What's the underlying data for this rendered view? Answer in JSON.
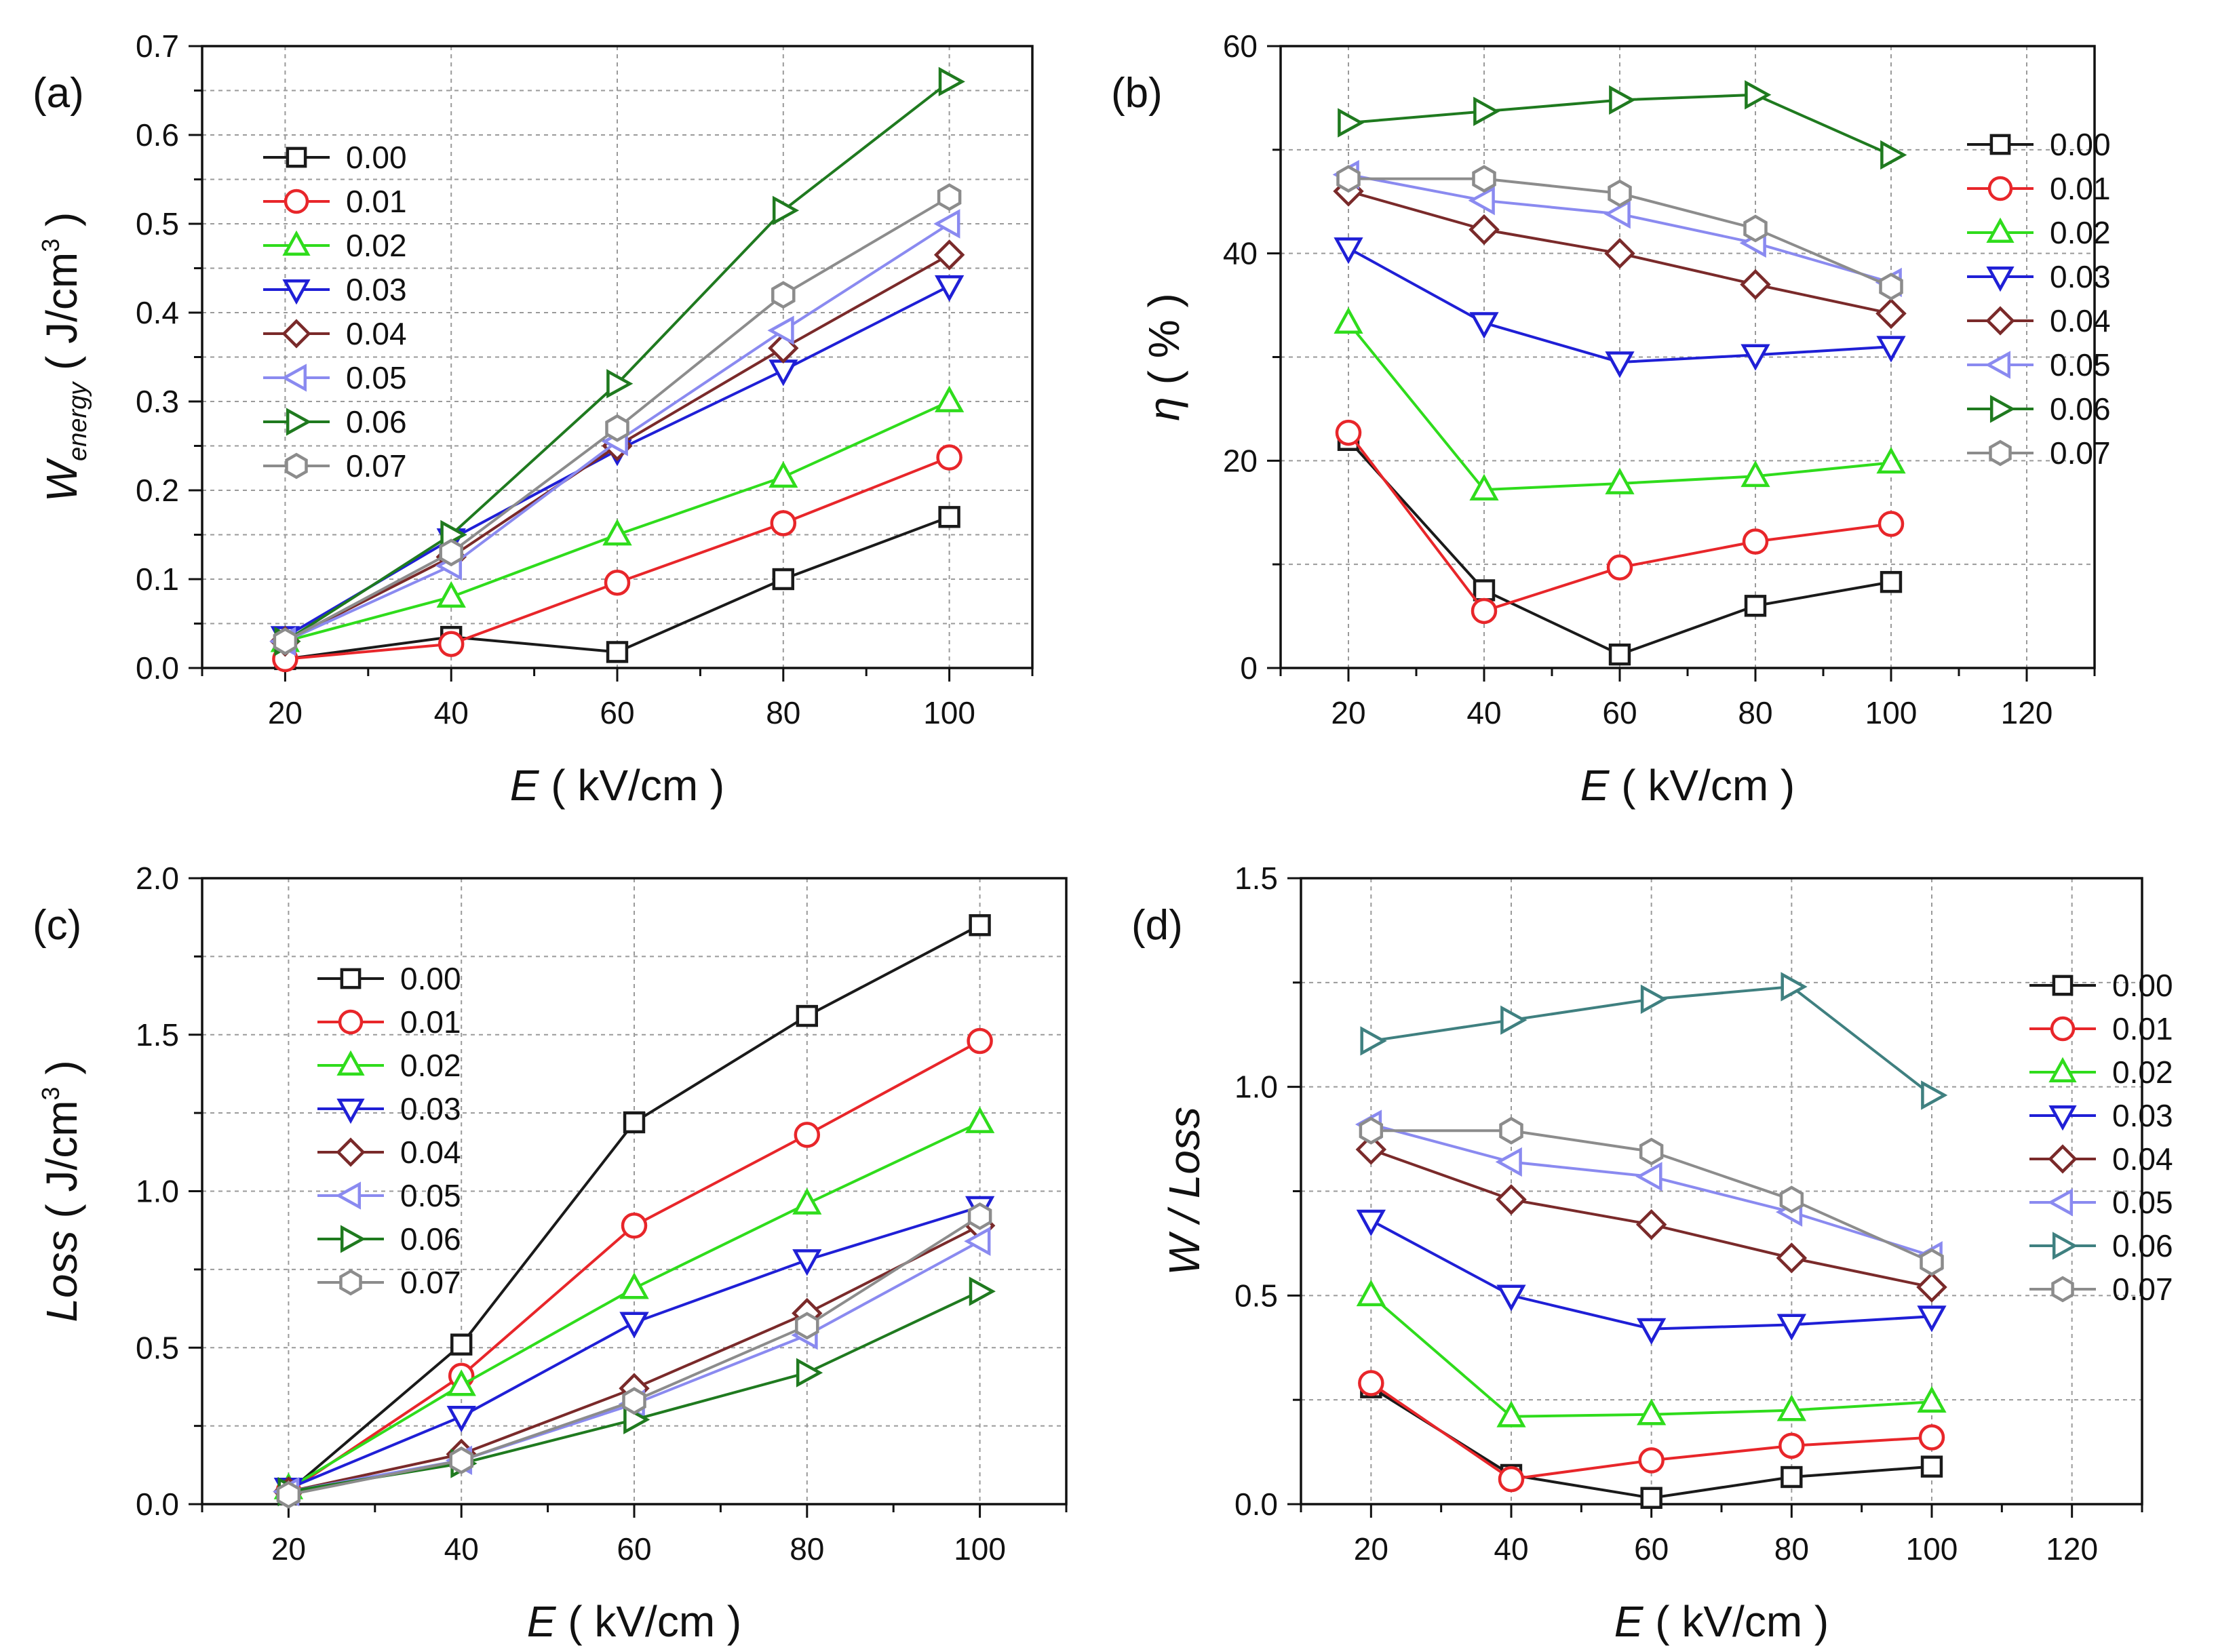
{
  "figure": {
    "x_unit": "( kV/cm )",
    "x_var": "E",
    "series_names": [
      "0.00",
      "0.01",
      "0.02",
      "0.03",
      "0.04",
      "0.05",
      "0.06",
      "0.07"
    ]
  },
  "chart_data": [
    {
      "panel": "(a)",
      "type": "line",
      "xlabel": "E ( kV/cm )",
      "ylabel_main": "W",
      "ylabel_sub": "energy",
      "ylabel_unit": "( J/cm",
      "ylabel_sup": "3",
      "ylabel_end": ")",
      "x": [
        20,
        40,
        60,
        80,
        100
      ],
      "xlim": [
        10,
        110
      ],
      "ylim": [
        0.0,
        0.7
      ],
      "xticks": [
        "20",
        "40",
        "60",
        "80",
        "100"
      ],
      "yticks": [
        "0.0",
        "0.1",
        "0.2",
        "0.3",
        "0.4",
        "0.5",
        "0.6",
        "0.7"
      ],
      "grid": true,
      "legend_position": "top-left",
      "series": [
        {
          "name": "0.00",
          "marker": "square",
          "color": "#1a1a1a",
          "values": [
            0.01,
            0.035,
            0.018,
            0.1,
            0.17
          ]
        },
        {
          "name": "0.01",
          "marker": "circle",
          "color": "#e8262a",
          "values": [
            0.01,
            0.027,
            0.096,
            0.163,
            0.237
          ]
        },
        {
          "name": "0.02",
          "marker": "triangle-up",
          "color": "#2fdc1c",
          "values": [
            0.03,
            0.08,
            0.15,
            0.215,
            0.3
          ]
        },
        {
          "name": "0.03",
          "marker": "triangle-down",
          "color": "#1f1fd6",
          "values": [
            0.035,
            0.145,
            0.245,
            0.335,
            0.43
          ]
        },
        {
          "name": "0.04",
          "marker": "diamond",
          "color": "#7a2a2a",
          "values": [
            0.03,
            0.125,
            0.25,
            0.36,
            0.465
          ]
        },
        {
          "name": "0.05",
          "marker": "triangle-left",
          "color": "#8a8af0",
          "values": [
            0.03,
            0.115,
            0.255,
            0.38,
            0.5
          ]
        },
        {
          "name": "0.06",
          "marker": "triangle-right",
          "color": "#1f7a1f",
          "values": [
            0.03,
            0.15,
            0.32,
            0.515,
            0.66
          ]
        },
        {
          "name": "0.07",
          "marker": "hexagon",
          "color": "#8c8c8c",
          "values": [
            0.03,
            0.13,
            0.27,
            0.42,
            0.53
          ]
        }
      ]
    },
    {
      "panel": "(b)",
      "type": "line",
      "xlabel": "E ( kV/cm )",
      "ylabel_main": "η",
      "ylabel_unit": "( % )",
      "x": [
        20,
        40,
        60,
        80,
        100
      ],
      "xlim": [
        10,
        130
      ],
      "ylim": [
        0,
        60
      ],
      "xticks": [
        "20",
        "40",
        "60",
        "80",
        "100",
        "120"
      ],
      "yticks": [
        "0",
        "20",
        "40",
        "60"
      ],
      "grid": true,
      "legend_position": "right",
      "series": [
        {
          "name": "0.00",
          "marker": "square",
          "color": "#1a1a1a",
          "values": [
            22.0,
            7.5,
            1.3,
            6.0,
            8.3
          ]
        },
        {
          "name": "0.01",
          "marker": "circle",
          "color": "#e8262a",
          "values": [
            22.7,
            5.5,
            9.7,
            12.2,
            13.9
          ]
        },
        {
          "name": "0.02",
          "marker": "triangle-up",
          "color": "#2fdc1c",
          "values": [
            33.3,
            17.2,
            17.8,
            18.5,
            19.8
          ]
        },
        {
          "name": "0.03",
          "marker": "triangle-down",
          "color": "#1f1fd6",
          "values": [
            40.5,
            33.3,
            29.5,
            30.2,
            31.0
          ]
        },
        {
          "name": "0.04",
          "marker": "diamond",
          "color": "#7a2a2a",
          "values": [
            46.0,
            42.3,
            40.0,
            37.0,
            34.2
          ]
        },
        {
          "name": "0.05",
          "marker": "triangle-left",
          "color": "#8a8af0",
          "values": [
            47.6,
            45.1,
            43.8,
            41.0,
            37.2
          ]
        },
        {
          "name": "0.06",
          "marker": "triangle-right",
          "color": "#1f7a1f",
          "values": [
            52.6,
            53.7,
            54.8,
            55.3,
            49.5
          ]
        },
        {
          "name": "0.07",
          "marker": "hexagon",
          "color": "#8c8c8c",
          "values": [
            47.2,
            47.2,
            45.8,
            42.4,
            36.8
          ]
        }
      ]
    },
    {
      "panel": "(c)",
      "type": "line",
      "xlabel": "E ( kV/cm )",
      "ylabel_main": "Loss",
      "ylabel_unit": "( J/cm",
      "ylabel_sup": "3",
      "ylabel_end": ")",
      "x": [
        20,
        40,
        60,
        80,
        100
      ],
      "xlim": [
        10,
        110
      ],
      "ylim": [
        0.0,
        2.0
      ],
      "xticks": [
        "20",
        "40",
        "60",
        "80",
        "100"
      ],
      "yticks": [
        "0.0",
        "0.5",
        "1.0",
        "1.5",
        "2.0"
      ],
      "grid": true,
      "legend_position": "top-left",
      "series": [
        {
          "name": "0.00",
          "marker": "square",
          "color": "#1a1a1a",
          "values": [
            0.04,
            0.51,
            1.22,
            1.56,
            1.85
          ]
        },
        {
          "name": "0.01",
          "marker": "circle",
          "color": "#e8262a",
          "values": [
            0.04,
            0.41,
            0.89,
            1.18,
            1.48
          ]
        },
        {
          "name": "0.02",
          "marker": "triangle-up",
          "color": "#2fdc1c",
          "values": [
            0.05,
            0.38,
            0.69,
            0.96,
            1.22
          ]
        },
        {
          "name": "0.03",
          "marker": "triangle-down",
          "color": "#1f1fd6",
          "values": [
            0.05,
            0.28,
            0.58,
            0.78,
            0.95
          ]
        },
        {
          "name": "0.04",
          "marker": "diamond",
          "color": "#7a2a2a",
          "values": [
            0.04,
            0.16,
            0.37,
            0.61,
            0.89
          ]
        },
        {
          "name": "0.05",
          "marker": "triangle-left",
          "color": "#8a8af0",
          "values": [
            0.04,
            0.14,
            0.32,
            0.54,
            0.84
          ]
        },
        {
          "name": "0.06",
          "marker": "triangle-right",
          "color": "#1f7a1f",
          "values": [
            0.04,
            0.13,
            0.27,
            0.42,
            0.68
          ]
        },
        {
          "name": "0.07",
          "marker": "hexagon",
          "color": "#8c8c8c",
          "values": [
            0.03,
            0.14,
            0.33,
            0.57,
            0.92
          ]
        }
      ]
    },
    {
      "panel": "(d)",
      "type": "line",
      "xlabel": "E ( kV/cm )",
      "ylabel_main": "W / Loss",
      "x": [
        20,
        40,
        60,
        80,
        100
      ],
      "xlim": [
        10,
        130
      ],
      "ylim": [
        0.0,
        1.5
      ],
      "xticks": [
        "20",
        "40",
        "60",
        "80",
        "100",
        "120"
      ],
      "yticks": [
        "0.0",
        "0.5",
        "1.0",
        "1.5"
      ],
      "grid": true,
      "legend_position": "right",
      "series": [
        {
          "name": "0.00",
          "marker": "square",
          "color": "#1a1a1a",
          "values": [
            0.28,
            0.07,
            0.015,
            0.065,
            0.09
          ]
        },
        {
          "name": "0.01",
          "marker": "circle",
          "color": "#e8262a",
          "values": [
            0.29,
            0.06,
            0.105,
            0.14,
            0.16
          ]
        },
        {
          "name": "0.02",
          "marker": "triangle-up",
          "color": "#2fdc1c",
          "values": [
            0.5,
            0.21,
            0.215,
            0.225,
            0.245
          ]
        },
        {
          "name": "0.03",
          "marker": "triangle-down",
          "color": "#1f1fd6",
          "values": [
            0.68,
            0.5,
            0.42,
            0.43,
            0.45
          ]
        },
        {
          "name": "0.04",
          "marker": "diamond",
          "color": "#7a2a2a",
          "values": [
            0.85,
            0.73,
            0.67,
            0.59,
            0.52
          ]
        },
        {
          "name": "0.05",
          "marker": "triangle-left",
          "color": "#8a8af0",
          "values": [
            0.91,
            0.82,
            0.785,
            0.7,
            0.595
          ]
        },
        {
          "name": "0.06",
          "marker": "triangle-right",
          "color": "#3f8080",
          "values": [
            1.11,
            1.16,
            1.21,
            1.24,
            0.98
          ]
        },
        {
          "name": "0.07",
          "marker": "hexagon",
          "color": "#8c8c8c",
          "values": [
            0.895,
            0.895,
            0.845,
            0.73,
            0.58
          ]
        }
      ]
    }
  ]
}
